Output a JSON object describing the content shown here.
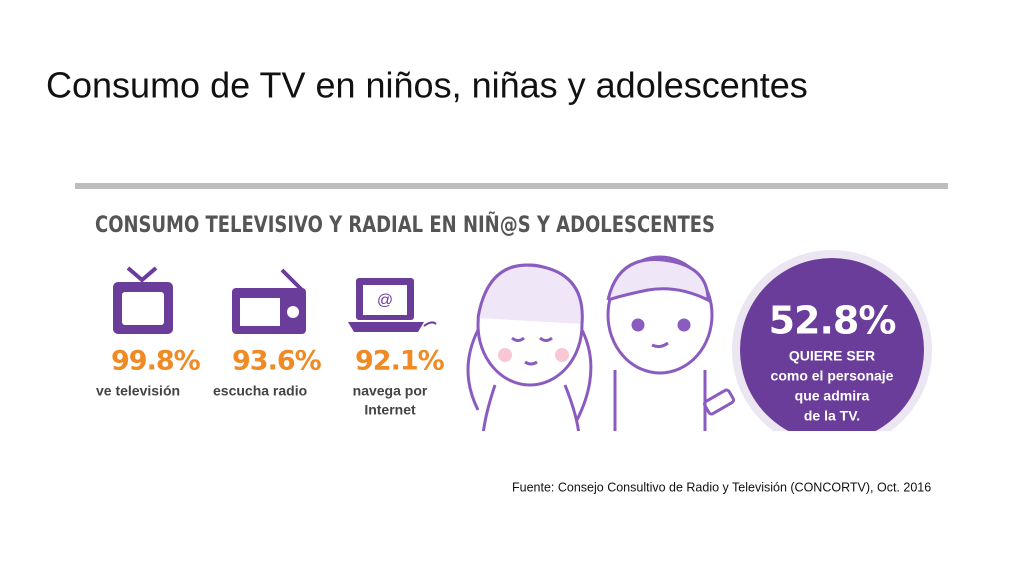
{
  "title": "Consumo de TV en niños, niñas y adolescentes",
  "infographic": {
    "heading": "CONSUMO TELEVISIVO Y RADIAL EN NIÑ@S Y ADOLESCENTES",
    "stats": [
      {
        "value": "99.8%",
        "label": [
          "ve televisión"
        ]
      },
      {
        "value": "93.6%",
        "label": [
          "escucha radio"
        ]
      },
      {
        "value": "92.1%",
        "label": [
          "navega por",
          "Internet"
        ]
      }
    ],
    "laptop_icon_text": "@",
    "highlight": {
      "value": "52.8%",
      "label": [
        "QUIERE SER",
        "como el personaje",
        "que admira",
        "de la TV."
      ]
    }
  },
  "source": "Fuente: Consejo Consultivo de Radio y Televisión (CONCORTV), Oct. 2016"
}
